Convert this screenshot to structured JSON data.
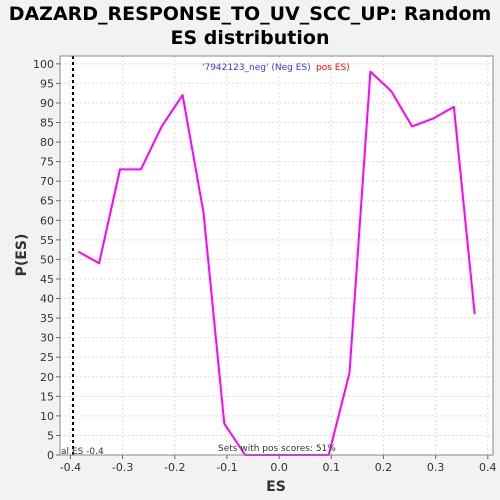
{
  "title_line1": "DAZARD_RESPONSE_TO_UV_SCC_UP: Random",
  "title_line2": "ES distribution",
  "colors": {
    "background": "#f2f2f2",
    "plot_bg": "#ffffff",
    "line": "#ff00ff",
    "neg_label": "#3333ff",
    "pos_label": "#ff0000",
    "grid": "#dddddd"
  },
  "annotations": {
    "legend_neg": "'7942123_neg' (Neg ES)",
    "legend_pos": "pos ES)",
    "sets_with_pos": "Sets with pos scores: 51%",
    "actual_es": "al ES -0.4"
  },
  "chart_data": {
    "type": "line",
    "xlabel": "ES",
    "ylabel": "P(ES)",
    "xlim": [
      -0.42,
      0.41
    ],
    "ylim": [
      0,
      102
    ],
    "xticks": [
      -0.4,
      -0.3,
      -0.2,
      -0.1,
      0.0,
      0.1,
      0.2,
      0.3,
      0.4
    ],
    "xtick_labels": [
      "-0.4",
      "-0.3",
      "-0.2",
      "-0.1",
      "0.0",
      "0.1",
      "0.2",
      "0.3",
      "0.4"
    ],
    "yticks": [
      0,
      5,
      10,
      15,
      20,
      25,
      30,
      35,
      40,
      45,
      50,
      55,
      60,
      65,
      70,
      75,
      80,
      85,
      90,
      95,
      100
    ],
    "grid": true,
    "actual_es_marker": -0.395,
    "x": [
      -0.385,
      -0.345,
      -0.305,
      -0.265,
      -0.225,
      -0.185,
      -0.145,
      -0.105,
      -0.065,
      -0.025,
      0.015,
      0.055,
      0.095,
      0.135,
      0.175,
      0.215,
      0.255,
      0.295,
      0.335,
      0.375
    ],
    "y": [
      52,
      49,
      73,
      73,
      84,
      92,
      62,
      8,
      0,
      0,
      0,
      0,
      0,
      21,
      98,
      93,
      84,
      86,
      89,
      36
    ]
  }
}
